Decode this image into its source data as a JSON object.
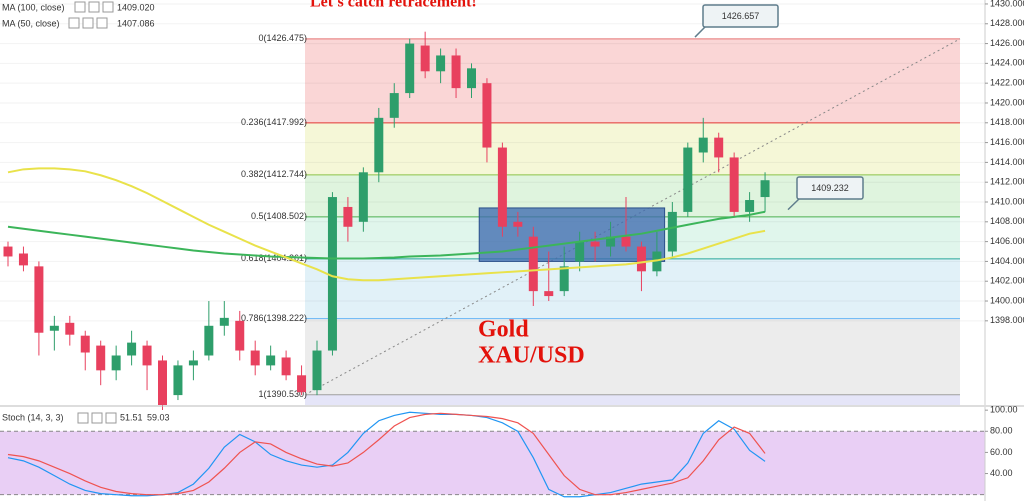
{
  "chart_data": [
    {
      "type": "candlestick",
      "title": "Let's catch retracement!",
      "annotations": [
        "Gold",
        "XAU/USD"
      ],
      "callouts": [
        1426.657,
        1409.232
      ],
      "up_color": "#2e9e6b",
      "down_color": "#e8405e",
      "open": [
        1405.5,
        1404.8,
        1403.5,
        1397,
        1397.8,
        1396.5,
        1395.5,
        1393,
        1394.5,
        1395.5,
        1394,
        1390.5,
        1393.5,
        1394.5,
        1397.5,
        1398,
        1395,
        1393.5,
        1394.3,
        1392.5,
        1391,
        1395,
        1409.5,
        1408,
        1413,
        1418.5,
        1421,
        1425.8,
        1423.2,
        1424.8,
        1421.5,
        1422,
        1415.5,
        1408,
        1406.5,
        1401,
        1401,
        1404,
        1406,
        1405.5,
        1406.5,
        1405.5,
        1403,
        1405,
        1409,
        1415,
        1416.5,
        1414.5,
        1409,
        1410.5
      ],
      "high": [
        1406,
        1405.5,
        1404,
        1398.5,
        1398.5,
        1397,
        1396,
        1395.5,
        1397,
        1396,
        1394.5,
        1394,
        1395,
        1400,
        1400,
        1399,
        1396,
        1395.5,
        1395,
        1393.5,
        1396,
        1411,
        1410.5,
        1413.5,
        1419.5,
        1422,
        1426.5,
        1427.2,
        1425.5,
        1425.5,
        1424,
        1422.5,
        1416,
        1409,
        1407.5,
        1405,
        1405.5,
        1407,
        1407,
        1408,
        1410.5,
        1406,
        1407,
        1410,
        1416,
        1418.5,
        1417,
        1415,
        1411,
        1413
      ],
      "low": [
        1403.5,
        1403,
        1394.5,
        1395,
        1395.5,
        1393,
        1391.5,
        1392,
        1393.5,
        1391,
        1389,
        1390,
        1392,
        1394,
        1396.5,
        1394,
        1392.5,
        1393,
        1392,
        1390.5,
        1390.5,
        1394.5,
        1406,
        1407,
        1412,
        1417.5,
        1420.5,
        1422.5,
        1422,
        1420.5,
        1420.5,
        1414,
        1406.5,
        1406.5,
        1399.5,
        1400,
        1400.5,
        1403,
        1404,
        1404.5,
        1405,
        1401,
        1402.5,
        1404.5,
        1408.5,
        1414,
        1413,
        1408.5,
        1408,
        1409
      ],
      "close": [
        1404.5,
        1403.6,
        1396.8,
        1397.5,
        1396.6,
        1394.8,
        1393,
        1394.5,
        1395.8,
        1393.5,
        1389.5,
        1393.5,
        1394,
        1397.5,
        1398.3,
        1395,
        1393.5,
        1394.5,
        1392.5,
        1390.8,
        1395,
        1410.5,
        1407.5,
        1413,
        1418.5,
        1421,
        1426,
        1423.2,
        1424.8,
        1421.5,
        1423.5,
        1415.5,
        1407.5,
        1407.5,
        1401,
        1400.5,
        1403.5,
        1406,
        1405.5,
        1406.5,
        1405.5,
        1403,
        1405,
        1409,
        1415.5,
        1416.5,
        1414.5,
        1409,
        1410.2,
        1412.2
      ],
      "series": [
        {
          "name": "MA (100, close)",
          "color": "#3cb55a",
          "legend_value": "1409.020",
          "values": [
            1407.5,
            1407.3,
            1407.1,
            1406.9,
            1406.7,
            1406.5,
            1406.3,
            1406.1,
            1405.9,
            1405.7,
            1405.5,
            1405.3,
            1405.1,
            1404.95,
            1404.8,
            1404.7,
            1404.6,
            1404.5,
            1404.45,
            1404.4,
            1404.35,
            1404.3,
            1404.3,
            1404.3,
            1404.35,
            1404.4,
            1404.5,
            1404.55,
            1404.6,
            1404.7,
            1404.8,
            1404.9,
            1405.0,
            1405.2,
            1405.4,
            1405.6,
            1405.8,
            1406.0,
            1406.2,
            1406.4,
            1406.6,
            1406.8,
            1407.1,
            1407.4,
            1407.7,
            1408.0,
            1408.3,
            1408.5,
            1408.7,
            1409.02
          ]
        },
        {
          "name": "MA (50, close)",
          "color": "#e9e24a",
          "legend_value": "1407.086",
          "values": [
            1413,
            1413.3,
            1413.4,
            1413.4,
            1413.3,
            1413.1,
            1412.7,
            1412.2,
            1411.6,
            1410.9,
            1410.1,
            1409.3,
            1408.5,
            1407.7,
            1407,
            1406.3,
            1405.6,
            1405,
            1404.4,
            1403.8,
            1403.2,
            1402.5,
            1402.2,
            1402.1,
            1402.1,
            1402.2,
            1402.3,
            1402.4,
            1402.5,
            1402.6,
            1402.7,
            1402.8,
            1402.9,
            1403,
            1403.1,
            1403.2,
            1403.3,
            1403.4,
            1403.5,
            1403.6,
            1403.7,
            1403.9,
            1404.1,
            1404.4,
            1404.8,
            1405.3,
            1405.8,
            1406.3,
            1406.8,
            1407.086
          ]
        }
      ],
      "fib_levels": [
        {
          "label": "0(1426.475)",
          "value": 1426.475,
          "color": "#8a8a8a",
          "line": "#e57373",
          "fill": "#f08a8a"
        },
        {
          "label": "0.236(1417.992)",
          "value": 1417.992,
          "color": "#e53935",
          "line": "#e53935",
          "fill": "#e3e88c"
        },
        {
          "label": "0.382(1412.744)",
          "value": 1412.744,
          "color": "#6a9a3a",
          "line": "#8bc34a",
          "fill": "#a3e0a0"
        },
        {
          "label": "0.5(1408.502)",
          "value": 1408.502,
          "color": "#3a9a4a",
          "line": "#4caf50",
          "fill": "#a6e6c8"
        },
        {
          "label": "0.618(1404.261)",
          "value": 1404.261,
          "color": "#2a8a80",
          "line": "#26a69a",
          "fill": "#a9d6ea"
        },
        {
          "label": "0.786(1398.222)",
          "value": 1398.222,
          "color": "#2979c9",
          "line": "#64b5f6",
          "fill": "#c8c8c8"
        },
        {
          "label": "1(1390.530)",
          "value": 1390.53,
          "color": "#777777",
          "line": "#9e9e9e",
          "fill": "#b5b5ea"
        }
      ],
      "highlight_zone": [
        1404.0,
        1409.4
      ],
      "highlight_color": "#3f6cb0",
      "ylim": [
        1389.5,
        1430.4
      ],
      "yticks": [
        {
          "value": 1398,
          "label": "1398.000"
        },
        {
          "value": 1400,
          "label": "1400.000"
        },
        {
          "value": 1402,
          "label": "1402.000"
        },
        {
          "value": 1404,
          "label": "1404.000"
        },
        {
          "value": 1406,
          "label": "1406.000"
        },
        {
          "value": 1408,
          "label": "1408.000"
        },
        {
          "value": 1410,
          "label": "1410.000"
        },
        {
          "value": 1412,
          "label": "1412.000"
        },
        {
          "value": 1414,
          "label": "1414.000"
        },
        {
          "value": 1416,
          "label": "1416.000"
        },
        {
          "value": 1418,
          "label": "1418.000"
        },
        {
          "value": 1420,
          "label": "1420.000"
        },
        {
          "value": 1422,
          "label": "1422.000"
        },
        {
          "value": 1424,
          "label": "1424.000"
        },
        {
          "value": 1426,
          "label": "1426.000"
        },
        {
          "value": 1428,
          "label": "1428.000"
        },
        {
          "value": 1430,
          "label": "1430.000"
        }
      ],
      "grid": true
    },
    {
      "type": "line",
      "title": "Stoch (14, 3, 3)",
      "series": [
        {
          "color": "#2196f3",
          "values": [
            55,
            52,
            46,
            38,
            30,
            24,
            21,
            20,
            19,
            19,
            20,
            22,
            30,
            45,
            65,
            77,
            70,
            58,
            52,
            48,
            46,
            48,
            60,
            78,
            90,
            95,
            98,
            97,
            96,
            96,
            95,
            93,
            88,
            80,
            55,
            25,
            18,
            18,
            20,
            22,
            26,
            30,
            32,
            34,
            50,
            78,
            90,
            82,
            62,
            51.51
          ]
        },
        {
          "color": "#ef5350",
          "values": [
            58,
            56,
            52,
            46,
            40,
            33,
            27,
            23,
            21,
            20,
            20,
            21,
            24,
            32,
            45,
            60,
            70,
            68,
            60,
            54,
            49,
            47,
            50,
            60,
            72,
            85,
            93,
            96,
            97,
            96,
            95,
            94,
            92,
            88,
            78,
            58,
            38,
            25,
            20,
            20,
            22,
            25,
            28,
            31,
            36,
            52,
            72,
            84,
            78,
            59.03
          ]
        }
      ],
      "bands": [
        20,
        80
      ],
      "band_color": "#d7a8ec",
      "ylim": [
        14,
        103
      ],
      "yticks": [
        {
          "value": 40,
          "label": "40.00"
        },
        {
          "value": 60,
          "label": "60.00"
        },
        {
          "value": 80,
          "label": "80.00"
        },
        {
          "value": 100,
          "label": "100.00"
        }
      ]
    }
  ]
}
